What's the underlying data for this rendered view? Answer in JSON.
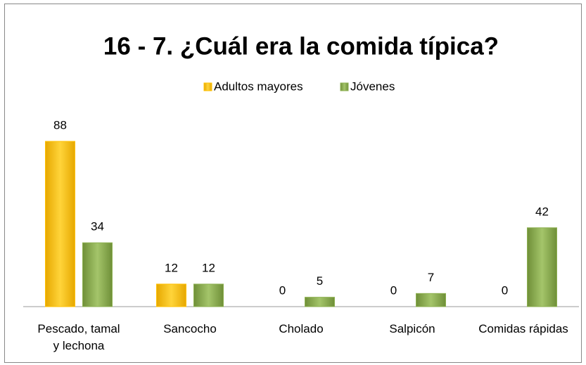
{
  "chart_data": {
    "type": "bar",
    "title": "16 - 7. ¿Cuál era la comida típica?",
    "categories": [
      "Pescado, tamal\ny lechona",
      "Sancocho",
      "Cholado",
      "Salpicón",
      "Comidas rápidas"
    ],
    "series": [
      {
        "name": "Adultos mayores",
        "color": "#ffc000",
        "values": [
          88,
          12,
          0,
          0,
          0
        ]
      },
      {
        "name": "Jóvenes",
        "color": "#8db050",
        "values": [
          34,
          12,
          5,
          7,
          42
        ]
      }
    ],
    "legend": "top"
  }
}
